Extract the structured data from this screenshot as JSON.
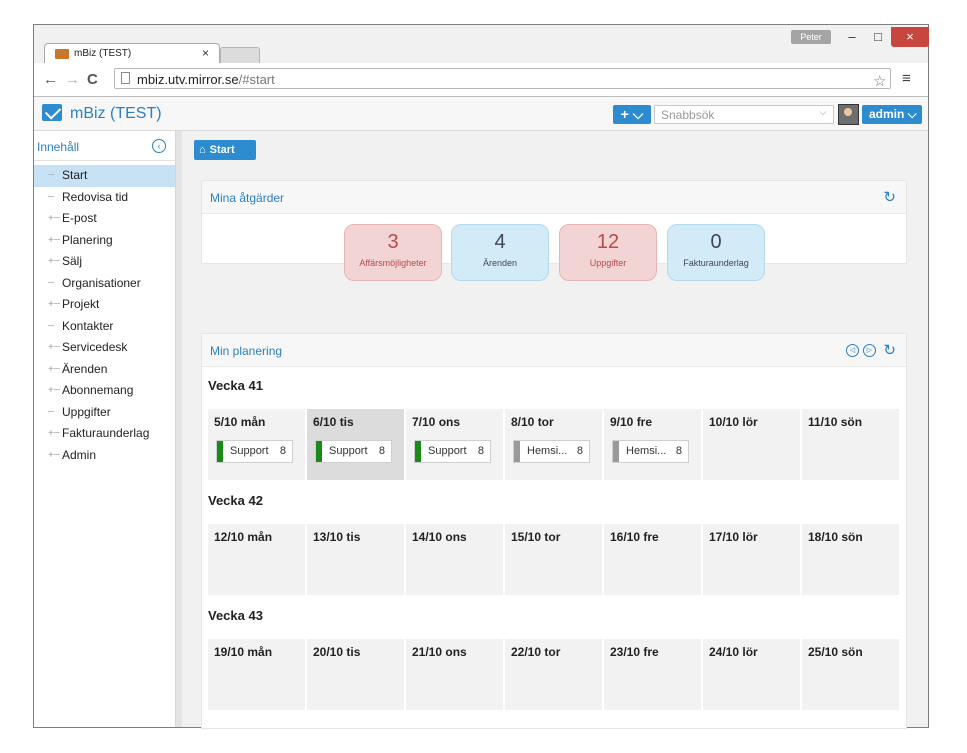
{
  "browser": {
    "tab_title": "mBiz (TEST)",
    "tab_close": "×",
    "profile": "Peter",
    "window_minimize": "–",
    "window_maximize": "□",
    "window_close": "×",
    "url_host": "mbiz.utv.mirror.se",
    "url_path": "/#start",
    "nav_back": "←",
    "nav_forward": "→",
    "nav_reload": "C",
    "star": "☆",
    "menu": "≡"
  },
  "app": {
    "title": "mBiz (TEST)",
    "add_label": "+ ⌵",
    "search_placeholder": "Snabbsök",
    "search_chevron": "⌵",
    "user_label": "admin ⌵",
    "accent_color": "#2d8bcf"
  },
  "sidebar": {
    "title": "Innehåll",
    "collapse": "‹",
    "items": [
      {
        "label": "Start",
        "prefix": "┄",
        "active": true
      },
      {
        "label": "Redovisa tid",
        "prefix": "┄"
      },
      {
        "label": "E-post",
        "prefix": "+┄"
      },
      {
        "label": "Planering",
        "prefix": "+┄"
      },
      {
        "label": "Sälj",
        "prefix": "+┄"
      },
      {
        "label": "Organisationer",
        "prefix": "┄"
      },
      {
        "label": "Projekt",
        "prefix": "+┄"
      },
      {
        "label": "Kontakter",
        "prefix": "┄"
      },
      {
        "label": "Servicedesk",
        "prefix": "+┄"
      },
      {
        "label": "Ärenden",
        "prefix": "+┄"
      },
      {
        "label": "Abonnemang",
        "prefix": "+┄"
      },
      {
        "label": "Uppgifter",
        "prefix": "┄"
      },
      {
        "label": "Fakturaunderlag",
        "prefix": "+┄"
      },
      {
        "label": "Admin",
        "prefix": "+┄"
      }
    ]
  },
  "breadcrumb": {
    "home_icon": "⌂",
    "label": "Start"
  },
  "actions_panel": {
    "title": "Mina åtgärder",
    "refresh": "↻",
    "tiles": [
      {
        "count": "3",
        "label": "Affärsmöjligheter",
        "style": "red"
      },
      {
        "count": "4",
        "label": "Ärenden",
        "style": "blue"
      },
      {
        "count": "12",
        "label": "Uppgifter",
        "style": "red"
      },
      {
        "count": "0",
        "label": "Fakturaunderlag",
        "style": "blue"
      }
    ]
  },
  "planning_panel": {
    "title": "Min planering",
    "prev": "◁",
    "next": "▷",
    "refresh": "↻",
    "weeks": [
      {
        "title": "Vecka 41",
        "days": [
          {
            "label": "5/10 mån",
            "events": [
              {
                "label": "Support",
                "hours": "8",
                "color": "#1a8a1a"
              }
            ]
          },
          {
            "label": "6/10 tis",
            "today": true,
            "events": [
              {
                "label": "Support",
                "hours": "8",
                "color": "#1a8a1a"
              }
            ]
          },
          {
            "label": "7/10 ons",
            "events": [
              {
                "label": "Support",
                "hours": "8",
                "color": "#1a8a1a"
              }
            ]
          },
          {
            "label": "8/10 tor",
            "events": [
              {
                "label": "Hemsi...",
                "hours": "8",
                "color": "#9a9a9a"
              }
            ]
          },
          {
            "label": "9/10 fre",
            "events": [
              {
                "label": "Hemsi...",
                "hours": "8",
                "color": "#9a9a9a"
              }
            ]
          },
          {
            "label": "10/10 lör",
            "events": []
          },
          {
            "label": "11/10 sön",
            "events": []
          }
        ]
      },
      {
        "title": "Vecka 42",
        "days": [
          {
            "label": "12/10 mån",
            "events": []
          },
          {
            "label": "13/10 tis",
            "events": []
          },
          {
            "label": "14/10 ons",
            "events": []
          },
          {
            "label": "15/10 tor",
            "events": []
          },
          {
            "label": "16/10 fre",
            "events": []
          },
          {
            "label": "17/10 lör",
            "events": []
          },
          {
            "label": "18/10 sön",
            "events": []
          }
        ]
      },
      {
        "title": "Vecka 43",
        "days": [
          {
            "label": "19/10 mån",
            "events": []
          },
          {
            "label": "20/10 tis",
            "events": []
          },
          {
            "label": "21/10 ons",
            "events": []
          },
          {
            "label": "22/10 tor",
            "events": []
          },
          {
            "label": "23/10 fre",
            "events": []
          },
          {
            "label": "24/10 lör",
            "events": []
          },
          {
            "label": "25/10 sön",
            "events": []
          }
        ]
      }
    ]
  }
}
